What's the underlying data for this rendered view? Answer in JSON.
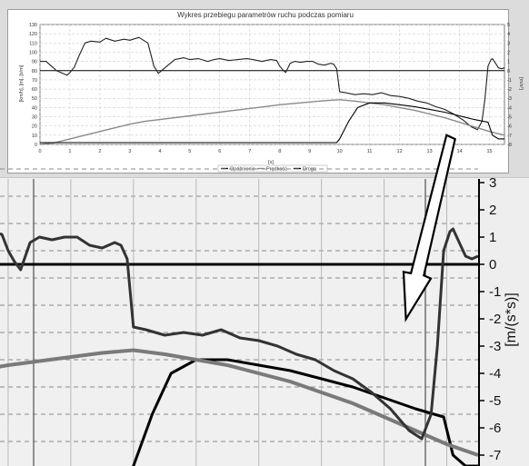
{
  "chart_data": [
    {
      "type": "line",
      "title": "Wykres przebiegu parametrów ruchu podczas pomiaru",
      "xlabel": "[s]",
      "ylabel_left": "[km/h], [m], [s/m]",
      "ylabel_right": "[m/s²]",
      "xlim": [
        0,
        15.5
      ],
      "ylim_left": [
        0,
        130
      ],
      "ylim_right": [
        -8,
        5
      ],
      "x_ticks": [
        "0",
        "1",
        "2",
        "3",
        "4",
        "5",
        "6",
        "7",
        "8",
        "9",
        "10",
        "11",
        "12",
        "13",
        "14",
        "15"
      ],
      "y_left_ticks": [
        "0",
        "10",
        "20",
        "30",
        "40",
        "50",
        "60",
        "70",
        "80",
        "90",
        "100",
        "110",
        "120",
        "130"
      ],
      "y_right_ticks": [
        "-8",
        "-7",
        "-6",
        "-5",
        "-4",
        "-3",
        "-2",
        "-1",
        "0",
        "1",
        "2",
        "3",
        "4",
        "5"
      ],
      "grid": true,
      "legend_position": "bottom-center",
      "series": [
        {
          "name": "Opóźnienie",
          "color": "#222222",
          "axis": "right",
          "x": [
            0,
            0.2,
            0.45,
            0.55,
            0.9,
            1.0,
            1.15,
            1.3,
            1.5,
            1.7,
            2.0,
            2.2,
            2.5,
            2.8,
            3.0,
            3.3,
            3.6,
            3.8,
            3.95,
            4.2,
            4.5,
            4.8,
            5.0,
            5.3,
            5.6,
            5.8,
            6.0,
            6.3,
            6.6,
            6.9,
            7.1,
            7.4,
            7.7,
            7.9,
            8.0,
            8.1,
            8.2,
            8.35,
            8.5,
            8.7,
            8.9,
            9.1,
            9.3,
            9.5,
            9.7,
            9.8,
            9.9,
            10.0,
            10.2,
            10.5,
            10.8,
            11.1,
            11.4,
            11.7,
            12.0,
            12.3,
            12.6,
            12.9,
            13.2,
            13.5,
            13.8,
            14.1,
            14.4,
            14.6,
            14.75,
            14.85,
            14.95,
            15.05,
            15.1,
            15.2,
            15.3,
            15.4,
            15.5
          ],
          "values": [
            1,
            1,
            0.3,
            0,
            -0.5,
            -0.2,
            0.4,
            1.6,
            3.0,
            3.2,
            3.1,
            3.5,
            3.2,
            3.4,
            3.3,
            3.6,
            3.0,
            0.5,
            -0.3,
            0.4,
            1.2,
            1.4,
            1.2,
            1.3,
            1.0,
            1.2,
            1.3,
            1.1,
            1.2,
            1.3,
            1.2,
            1.0,
            1.2,
            1.1,
            0.5,
            0.1,
            -0.2,
            0.8,
            1.0,
            0.9,
            1.0,
            1.0,
            0.7,
            0.6,
            0.8,
            0.7,
            0.2,
            -2.3,
            -2.4,
            -2.6,
            -2.5,
            -2.6,
            -2.4,
            -2.7,
            -2.8,
            -3.0,
            -3.3,
            -3.5,
            -3.9,
            -4.2,
            -4.7,
            -5.3,
            -6.1,
            -6.4,
            -5.5,
            -3.0,
            0.5,
            1.2,
            1.3,
            0.8,
            0.3,
            0.2,
            0.3
          ]
        },
        {
          "name": "Prędkość",
          "color": "#8a8a8a",
          "axis": "left",
          "x": [
            0,
            0.5,
            1.0,
            1.5,
            2.0,
            2.5,
            3.0,
            3.5,
            4.0,
            4.5,
            5.0,
            5.5,
            6.0,
            6.5,
            7.0,
            7.5,
            8.0,
            8.5,
            9.0,
            9.5,
            10.0,
            10.5,
            11.0,
            11.5,
            12.0,
            12.5,
            13.0,
            13.5,
            14.0,
            14.5,
            15.0,
            15.5
          ],
          "values": [
            0,
            2,
            6,
            10,
            14,
            18,
            22,
            25,
            27,
            29,
            31,
            33,
            35,
            37,
            39,
            41,
            43,
            44.5,
            46,
            47.5,
            48.5,
            47,
            45,
            43,
            40,
            37,
            33,
            29,
            24,
            19,
            14,
            10
          ]
        },
        {
          "name": "Droga",
          "color": "#000000",
          "axis": "left",
          "x": [
            0,
            9.9,
            10.0,
            10.3,
            10.6,
            11.0,
            11.5,
            12.0,
            12.5,
            13.0,
            13.5,
            14.0,
            14.5,
            14.8,
            14.95,
            15.1,
            15.3,
            15.5
          ],
          "values": [
            2,
            2,
            6,
            25,
            40,
            45,
            45,
            43,
            41,
            38,
            35,
            31,
            27,
            25,
            24,
            10,
            6,
            6
          ]
        }
      ]
    },
    {
      "type": "line",
      "title": "",
      "xlabel": "",
      "ylabel": "[m/(s*s)]",
      "xlim": [
        7.87,
        15.5
      ],
      "ylim": [
        -7.8,
        3.05
      ],
      "y_ticks": [
        "-7",
        "-6",
        "-5",
        "-4",
        "-3",
        "-2",
        "-1",
        "0",
        "1",
        "2",
        "3"
      ],
      "grid": true,
      "annotation": "arrow from top chart to zoomed chart"
    }
  ]
}
